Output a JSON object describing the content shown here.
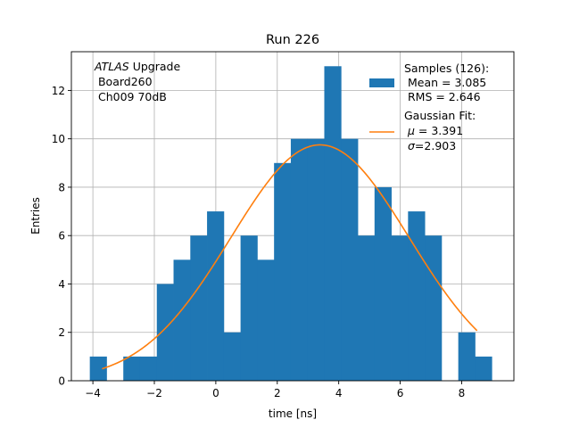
{
  "chart_data": {
    "type": "bar",
    "title": "Run 226",
    "xlabel": "time [ns]",
    "ylabel": "Entries",
    "xlim": [
      -4.7,
      9.7
    ],
    "ylim": [
      0,
      13.6
    ],
    "grid": true,
    "xticks": [
      -4,
      -2,
      0,
      2,
      4,
      6,
      8
    ],
    "xtick_labels": [
      "−4",
      "−2",
      "0",
      "2",
      "4",
      "6",
      "8"
    ],
    "yticks": [
      0,
      2,
      4,
      6,
      8,
      10,
      12
    ],
    "ytick_labels": [
      "0",
      "2",
      "4",
      "6",
      "8",
      "10",
      "12"
    ],
    "bin_width": 0.545,
    "bins": [
      {
        "x0": -4.1,
        "count": 1
      },
      {
        "x0": -3.555,
        "count": 0
      },
      {
        "x0": -3.01,
        "count": 1
      },
      {
        "x0": -2.465,
        "count": 1
      },
      {
        "x0": -1.92,
        "count": 4
      },
      {
        "x0": -1.375,
        "count": 5
      },
      {
        "x0": -0.83,
        "count": 6
      },
      {
        "x0": -0.285,
        "count": 7
      },
      {
        "x0": 0.26,
        "count": 2
      },
      {
        "x0": 0.805,
        "count": 6
      },
      {
        "x0": 1.35,
        "count": 5
      },
      {
        "x0": 1.895,
        "count": 9
      },
      {
        "x0": 2.44,
        "count": 10
      },
      {
        "x0": 2.985,
        "count": 10
      },
      {
        "x0": 3.53,
        "count": 13
      },
      {
        "x0": 4.075,
        "count": 10
      },
      {
        "x0": 4.62,
        "count": 6
      },
      {
        "x0": 5.165,
        "count": 8
      },
      {
        "x0": 5.71,
        "count": 6
      },
      {
        "x0": 6.255,
        "count": 7
      },
      {
        "x0": 6.8,
        "count": 6
      },
      {
        "x0": 7.345,
        "count": 0
      },
      {
        "x0": 7.89,
        "count": 2
      },
      {
        "x0": 8.435,
        "count": 1
      }
    ],
    "fit": {
      "name": "Gaussian Fit",
      "mu": 3.391,
      "sigma": 2.903,
      "amplitude": 9.75,
      "x_range": [
        -3.7,
        8.5
      ]
    },
    "series_colors": {
      "histogram": "#1f77b4",
      "fit": "#ff7f0e"
    },
    "annotation": {
      "italic": "ATLAS",
      "line1_rest": " Upgrade",
      "line2": " Board260",
      "line3": " Ch009 70dB"
    },
    "legend": {
      "position": "top-right",
      "samples_line1": "Samples (126):",
      "samples_line2": " Mean = 3.085",
      "samples_line3": " RMS = 2.646",
      "fit_line1": "Gaussian Fit:",
      "fit_line2_sym": "μ",
      "fit_line2_rest": " = 3.391",
      "fit_line3_sym": "σ",
      "fit_line3_rest": "=2.903"
    }
  }
}
